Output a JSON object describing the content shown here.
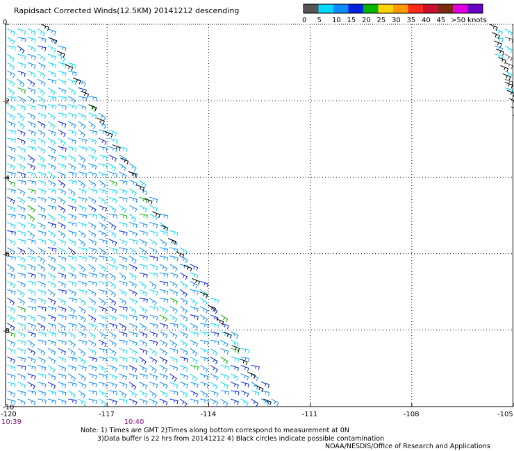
{
  "header": {
    "title": "Rapidsact Corrected Winds(12.5KM) 20141212 descending"
  },
  "legend": {
    "labels": [
      "0",
      "5",
      "10",
      "15",
      "20",
      "25",
      "30",
      "35",
      "40",
      "45",
      ">50 knots"
    ],
    "colors": [
      "#555555",
      "#00d8ff",
      "#0a8cff",
      "#0022dd",
      "#00b400",
      "#ffd400",
      "#ff9a00",
      "#ff2a1a",
      "#c8102e",
      "#7a2a10",
      "#e000e0",
      "#6a00c8"
    ]
  },
  "axes": {
    "x_ticks": [
      "-120",
      "-117",
      "-114",
      "-111",
      "-108",
      "-105"
    ],
    "y_ticks": [
      "0",
      "-2",
      "-4",
      "-6",
      "-8",
      "-10"
    ],
    "times": [
      "10:39",
      "10:40"
    ],
    "time_color": "#7a0a7a"
  },
  "notes": {
    "line1": "Note: 1) Times are GMT 2)Times along bottom correspond to measurement at 0N",
    "line2": "3)Data buffer is 22 hrs from 20141212 4) Black circles indicate possible contamination",
    "line3": "NOAA/NESDIS/Office of Research and Applications"
  },
  "chart_data": {
    "type": "wind_barbs",
    "xlim": [
      -120,
      -105
    ],
    "ylim": [
      -10,
      0
    ],
    "grid": "dotted",
    "swaths": [
      {
        "name": "west",
        "polygon": [
          [
            -120,
            0
          ],
          [
            -118.7,
            0
          ],
          [
            -112,
            -10
          ],
          [
            -120,
            -10
          ]
        ]
      },
      {
        "name": "east",
        "polygon": [
          [
            -105.8,
            0
          ],
          [
            -105,
            0
          ],
          [
            -105,
            -2.7
          ]
        ]
      }
    ],
    "dominant_speed_knots": [
      5,
      15
    ],
    "dominant_direction": "southeasterly",
    "swath_edge_color": "#000000"
  }
}
